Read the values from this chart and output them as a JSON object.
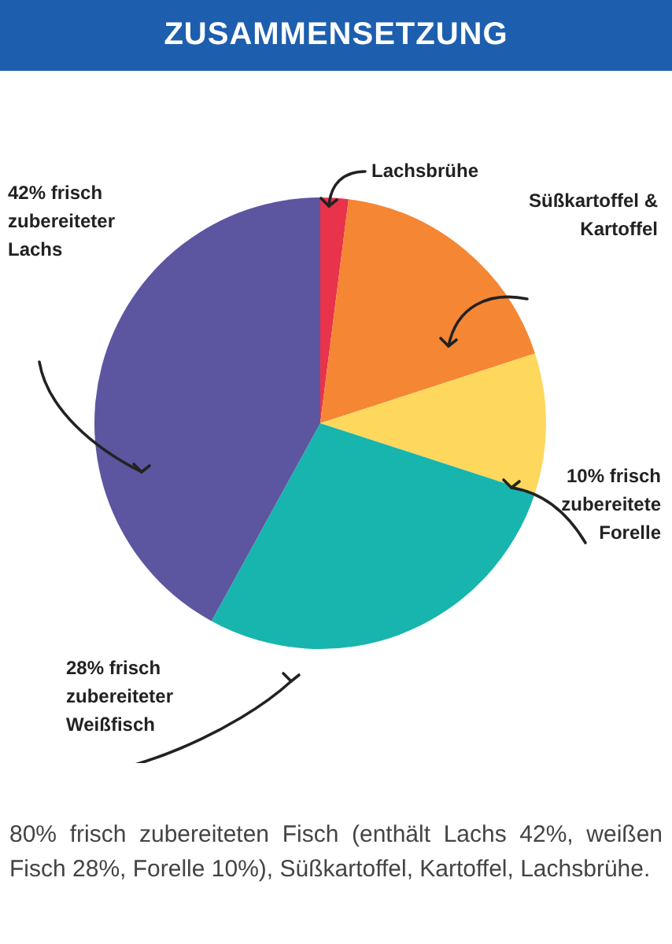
{
  "chart_data": {
    "type": "pie",
    "title": "ZUSAMMENSETZUNG",
    "categories": [
      "Lachsbrühe",
      "Süßkartoffel & Kartoffel",
      "10% frisch zubereitete Forelle",
      "28% frisch zubereiteter Weißfisch",
      "42% frisch zubereiteter Lachs"
    ],
    "values": [
      2,
      18,
      10,
      28,
      42
    ],
    "colors": [
      "#e8334a",
      "#f58634",
      "#fdd85d",
      "#17b5ae",
      "#5c55a0"
    ],
    "legend": false,
    "annotations": [
      "80% frisch zubereiteten Fisch (enthält Lachs 42%, weißen Fisch 28%, Forelle 10%), Süßkartoffel, Kartoffel, Lachsbrühe."
    ]
  }
}
